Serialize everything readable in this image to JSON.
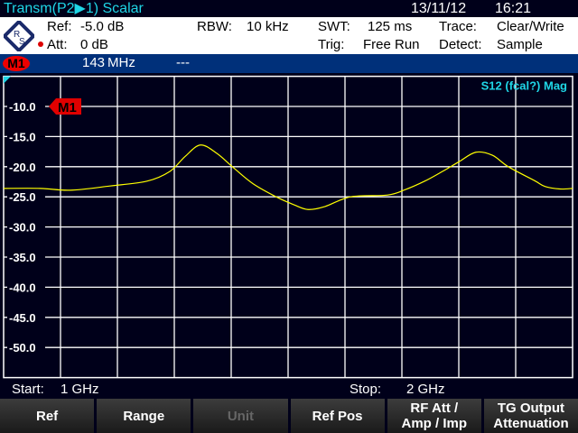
{
  "header": {
    "title": "Transm(P2▶1) Scalar",
    "date": "13/11/12",
    "time": "16:21"
  },
  "info": {
    "ref_label": "Ref:",
    "ref": "-5.0 dB",
    "att_label": "Att:",
    "att": "0 dB",
    "rbw_label": "RBW:",
    "rbw": "10 kHz",
    "swt_label": "SWT:",
    "swt": "125 ms",
    "trig_label": "Trig:",
    "trig": "Free Run",
    "trace_label": "Trace:",
    "trace": "Clear/Write",
    "detect_label": "Detect:",
    "detect": "Sample",
    "logo": "R&S"
  },
  "marker_bar": {
    "marker": "M1",
    "freq": "143 MHz",
    "value": "---"
  },
  "plot": {
    "trace_label": "S12 (fcal?) Mag",
    "marker": "M1",
    "start_label": "Start:",
    "start": "1 GHz",
    "stop_label": "Stop:",
    "stop": "2 GHz"
  },
  "softkeys": [
    {
      "label": "Ref",
      "enabled": true
    },
    {
      "label": "Range",
      "enabled": true
    },
    {
      "label": "Unit",
      "enabled": false
    },
    {
      "label": "Ref Pos",
      "enabled": true
    },
    {
      "label": "RF Att /\nAmp / Imp",
      "enabled": true
    },
    {
      "label": "TG Output\nAttenuation",
      "enabled": true
    }
  ],
  "colors": {
    "trace": "#ffff00",
    "grid": "#ffffff",
    "label": "#1fd6e6",
    "marker": "#e00000",
    "marker_bar": "#00307a"
  },
  "chart_data": {
    "type": "line",
    "xlim": [
      1,
      2
    ],
    "ylim": [
      -55,
      -5
    ],
    "x_unit": "GHz",
    "y_unit": "dB",
    "yticks": [
      "-10.0",
      "-15.0",
      "-20.0",
      "-25.0",
      "-30.0",
      "-35.0",
      "-40.0",
      "-45.0",
      "-50.0"
    ],
    "ytick_values": [
      -10,
      -15,
      -20,
      -25,
      -30,
      -35,
      -40,
      -45,
      -50
    ],
    "grid": true,
    "x_divisions": 10,
    "series": [
      {
        "name": "S12 (fcal?) Mag",
        "x": [
          1.0,
          1.065,
          1.117,
          1.187,
          1.252,
          1.292,
          1.319,
          1.346,
          1.375,
          1.402,
          1.438,
          1.479,
          1.51,
          1.535,
          1.565,
          1.61,
          1.675,
          1.706,
          1.74,
          1.771,
          1.8,
          1.83,
          1.859,
          1.887,
          1.933,
          1.952,
          1.978,
          2.0
        ],
        "y": [
          -23.6,
          -23.6,
          -23.9,
          -23.2,
          -22.4,
          -20.8,
          -18.3,
          -16.4,
          -17.8,
          -20.0,
          -22.8,
          -25.0,
          -26.3,
          -27.1,
          -26.6,
          -25.0,
          -24.7,
          -23.8,
          -22.4,
          -20.8,
          -19.2,
          -17.6,
          -18.1,
          -20.0,
          -22.3,
          -23.3,
          -23.7,
          -23.6
        ]
      }
    ]
  }
}
